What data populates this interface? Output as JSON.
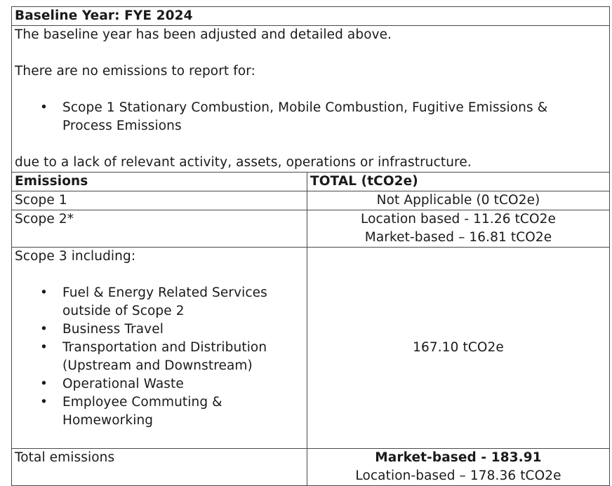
{
  "header": {
    "title": "Baseline Year: FYE 2024"
  },
  "intro": {
    "line1": "The baseline year has been adjusted and detailed above.",
    "line2": "There are no emissions to report for:",
    "bullets": [
      "Scope 1 Stationary Combustion, Mobile Combustion, Fugitive Emissions & Process Emissions"
    ],
    "line3": "due to a lack of relevant activity, assets, operations or infrastructure."
  },
  "table": {
    "col_emissions": "Emissions",
    "col_total": "TOTAL (tCO2e)",
    "scope1": {
      "label": "Scope 1",
      "value": "Not Applicable (0 tCO2e)"
    },
    "scope2": {
      "label": "Scope 2*",
      "value_location": "Location based - 11.26 tCO2e",
      "value_market": "Market-based – 16.81 tCO2e"
    },
    "scope3": {
      "label": "Scope 3 including:",
      "items": [
        "Fuel & Energy Related Services outside of Scope 2",
        "Business Travel",
        "Transportation and Distribution (Upstream and Downstream)",
        "Operational Waste",
        "Employee Commuting & Homeworking"
      ],
      "value": "167.10 tCO2e"
    },
    "total": {
      "label": "Total emissions",
      "value_market": "Market-based - 183.91",
      "value_location": "Location-based – 178.36 tCO2e"
    }
  },
  "bullet_glyph": "•"
}
